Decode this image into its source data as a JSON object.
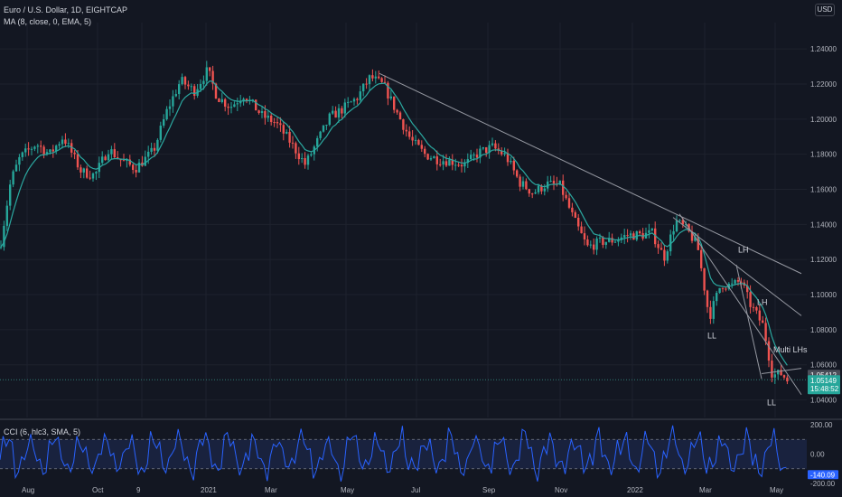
{
  "header": {
    "symbol": "Euro / U.S. Dollar, 1D, EIGHTCAP",
    "ma_indicator": "MA (8, close, 0, EMA, 5)",
    "currency": "USD",
    "cci_indicator": "CCI (6, hlc3, SMA, 5)"
  },
  "colors": {
    "background": "#131722",
    "up": "#26a69a",
    "down": "#ef5350",
    "ma_line": "#2ba8a0",
    "trendline": "#9598a1",
    "cci_line": "#2962ff",
    "cci_band": "#1e2a52",
    "price_label": "#26a69a"
  },
  "chart_data": [
    {
      "type": "candlestick",
      "ylim": [
        1.03,
        1.255
      ],
      "y_ticks": [
        "1.24000",
        "1.22000",
        "1.20000",
        "1.18000",
        "1.16000",
        "1.14000",
        "1.12000",
        "1.10000",
        "1.08000",
        "1.06000",
        "1.04000"
      ],
      "x_ticks": [
        "Aug",
        "Oct",
        "9",
        "2021",
        "Mar",
        "May",
        "Jul",
        "Sep",
        "Nov",
        "2022",
        "Mar",
        "May"
      ],
      "path": [
        [
          0,
          1.127
        ],
        [
          12,
          1.165
        ],
        [
          22,
          1.178
        ],
        [
          40,
          1.186
        ],
        [
          55,
          1.18
        ],
        [
          70,
          1.19
        ],
        [
          90,
          1.17
        ],
        [
          105,
          1.168
        ],
        [
          120,
          1.183
        ],
        [
          135,
          1.176
        ],
        [
          150,
          1.172
        ],
        [
          170,
          1.182
        ],
        [
          185,
          1.205
        ],
        [
          200,
          1.222
        ],
        [
          215,
          1.216
        ],
        [
          230,
          1.228
        ],
        [
          240,
          1.213
        ],
        [
          255,
          1.207
        ],
        [
          270,
          1.214
        ],
        [
          290,
          1.202
        ],
        [
          305,
          1.198
        ],
        [
          320,
          1.188
        ],
        [
          338,
          1.174
        ],
        [
          350,
          1.186
        ],
        [
          365,
          1.201
        ],
        [
          380,
          1.206
        ],
        [
          395,
          1.212
        ],
        [
          410,
          1.224
        ],
        [
          425,
          1.219
        ],
        [
          440,
          1.203
        ],
        [
          455,
          1.188
        ],
        [
          470,
          1.18
        ],
        [
          485,
          1.177
        ],
        [
          500,
          1.176
        ],
        [
          515,
          1.174
        ],
        [
          530,
          1.181
        ],
        [
          545,
          1.184
        ],
        [
          560,
          1.179
        ],
        [
          575,
          1.164
        ],
        [
          590,
          1.158
        ],
        [
          605,
          1.163
        ],
        [
          620,
          1.162
        ],
        [
          635,
          1.143
        ],
        [
          650,
          1.127
        ],
        [
          665,
          1.13
        ],
        [
          680,
          1.131
        ],
        [
          695,
          1.134
        ],
        [
          710,
          1.134
        ],
        [
          722,
          1.135
        ],
        [
          735,
          1.121
        ],
        [
          748,
          1.142
        ],
        [
          760,
          1.137
        ],
        [
          772,
          1.128
        ],
        [
          785,
          1.087
        ],
        [
          798,
          1.106
        ],
        [
          810,
          1.105
        ],
        [
          820,
          1.108
        ],
        [
          830,
          1.095
        ],
        [
          845,
          1.082
        ],
        [
          855,
          1.054
        ],
        [
          865,
          1.055
        ],
        [
          872,
          1.051
        ]
      ],
      "ma": "MA (8, close, 0, EMA, 5)",
      "trendlines": [
        {
          "from": [
            "May 2021",
            1.226
          ],
          "to": [
            "Jun 2022",
            1.112
          ]
        },
        {
          "from": [
            "Jan 2022",
            1.144
          ],
          "to": [
            "Jun 2022",
            1.088
          ]
        },
        {
          "from": [
            "Feb 2022",
            1.146
          ],
          "to": [
            "Jun 2022",
            1.043
          ]
        },
        {
          "from": [
            "Mar 2022",
            1.117
          ],
          "to": [
            "May 2022",
            1.052
          ]
        },
        {
          "from": [
            "May 2022",
            1.055
          ],
          "to": [
            "Jun 2022",
            1.058
          ]
        }
      ],
      "annotations": [
        {
          "text": "LH",
          "x": "Mar 2022",
          "y": 1.124
        },
        {
          "text": "LH",
          "x": "Apr 2022",
          "y": 1.094
        },
        {
          "text": "LL",
          "x": "Mar 2022",
          "y": 1.075
        },
        {
          "text": "Multi LHs",
          "x": "May 2022",
          "y": 1.067
        },
        {
          "text": "LL",
          "x": "May 2022",
          "y": 1.037
        }
      ],
      "last_price_label": "1.05149",
      "countdown_label": "15:48:52",
      "grey_price_label": "1.05412",
      "hline": 1.0515
    },
    {
      "type": "line",
      "title": "CCI (6, hlc3, SMA, 5)",
      "ylim": [
        -200,
        200
      ],
      "y_ticks": [
        "200.00",
        "0.00",
        "-200.00"
      ],
      "band": [
        -100,
        100
      ],
      "last_value_label": "-140.09"
    }
  ]
}
